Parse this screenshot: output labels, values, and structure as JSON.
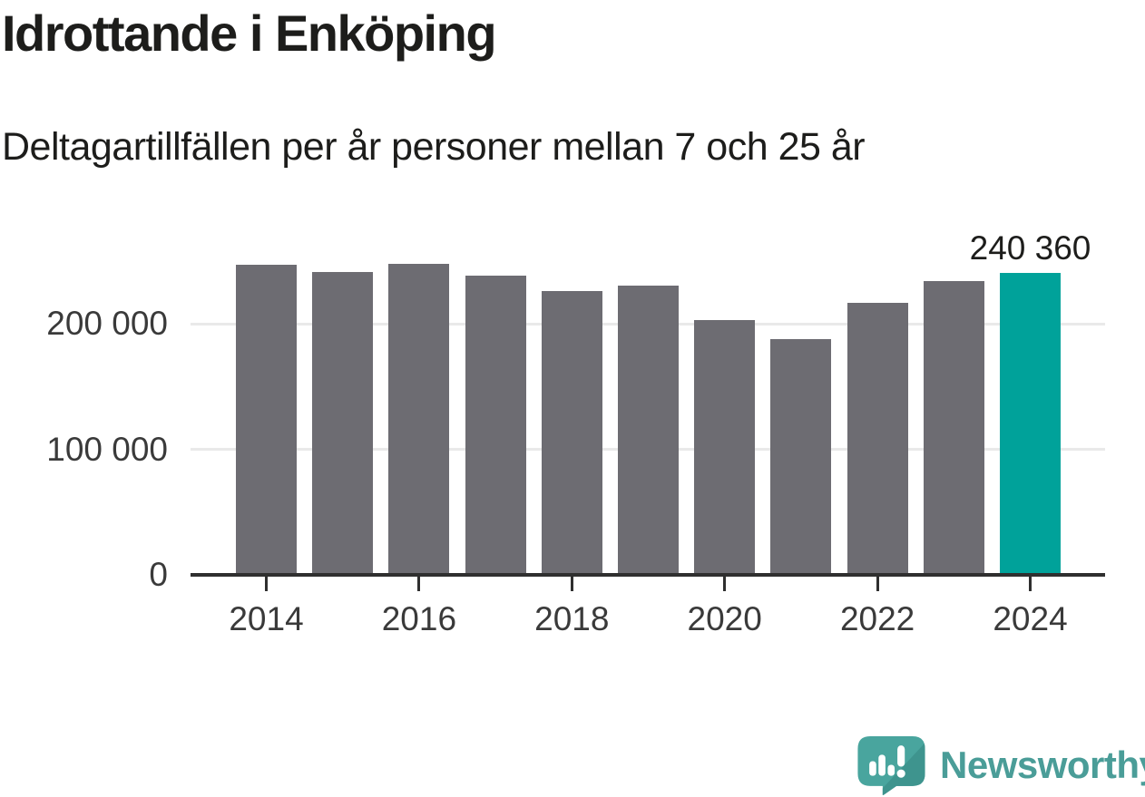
{
  "header": {
    "title": "Idrottande i Enköping",
    "subtitle": "Deltagartillfällen per år personer mellan 7 och 25 år"
  },
  "chart_data": {
    "type": "bar",
    "title": "Idrottande i Enköping",
    "subtitle": "Deltagartillfällen per år personer mellan 7 och 25 år",
    "categories": [
      "2014",
      "2015",
      "2016",
      "2017",
      "2018",
      "2019",
      "2020",
      "2021",
      "2022",
      "2023",
      "2024"
    ],
    "values": [
      247000,
      241000,
      248000,
      238000,
      226000,
      230000,
      203000,
      188000,
      216500,
      234000,
      240360
    ],
    "highlight_index": 10,
    "value_label": "240 360",
    "yticks": [
      {
        "value": 0,
        "label": "0"
      },
      {
        "value": 100000,
        "label": "100 000"
      },
      {
        "value": 200000,
        "label": "200 000"
      }
    ],
    "xtick_labels": [
      "2014",
      "2016",
      "2018",
      "2020",
      "2022",
      "2024"
    ],
    "ylim": [
      0,
      250000
    ],
    "grid": true,
    "legend": "none",
    "bar_color": "#6D6C72",
    "highlight_color": "#00A29A",
    "grid_color": "#E9E9E9",
    "axis_color": "#2F2F2F",
    "label_color": "#3A3A3A"
  },
  "footer": {
    "brand": "Newsworthy",
    "brand_color": "#4A9D98",
    "logo_teal": "#49A59E",
    "logo_dark": "#3E948E",
    "logo_bars_color": "#FFFFFF"
  }
}
